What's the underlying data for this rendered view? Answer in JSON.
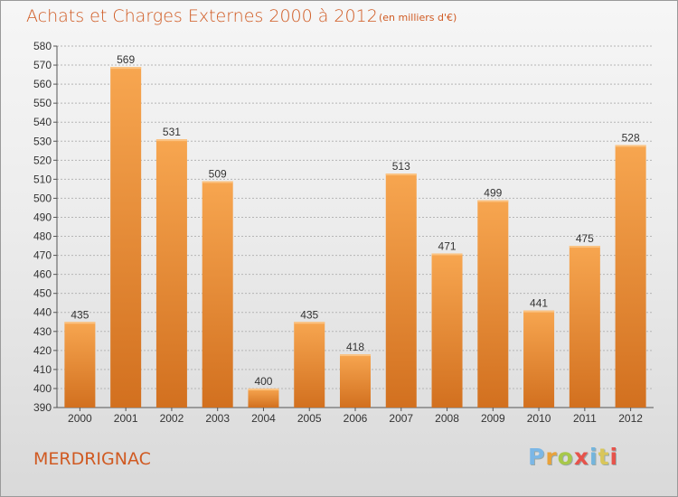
{
  "header": {
    "title": "Achats et Charges Externes 2000 à 2012",
    "unit_note": "(en milliers d'€)"
  },
  "footer": {
    "commune": "MERDRIGNAC",
    "logo": "Proxiti"
  },
  "colors": {
    "accent": "#d05a22",
    "bar_light": "#f7a650",
    "bar_dark": "#d2701f",
    "grid": "#b5b5b5"
  },
  "chart_data": {
    "type": "bar",
    "title": "Achats et Charges Externes 2000 à 2012",
    "subtitle": "(en milliers d'€)",
    "categories": [
      "2000",
      "2001",
      "2002",
      "2003",
      "2004",
      "2005",
      "2006",
      "2007",
      "2008",
      "2009",
      "2010",
      "2011",
      "2012"
    ],
    "values": [
      435,
      569,
      531,
      509,
      400,
      435,
      418,
      513,
      471,
      499,
      441,
      475,
      528
    ],
    "ylim": [
      390,
      580
    ],
    "ytick_step": 10,
    "grid": true,
    "xlabel": "",
    "ylabel": ""
  }
}
